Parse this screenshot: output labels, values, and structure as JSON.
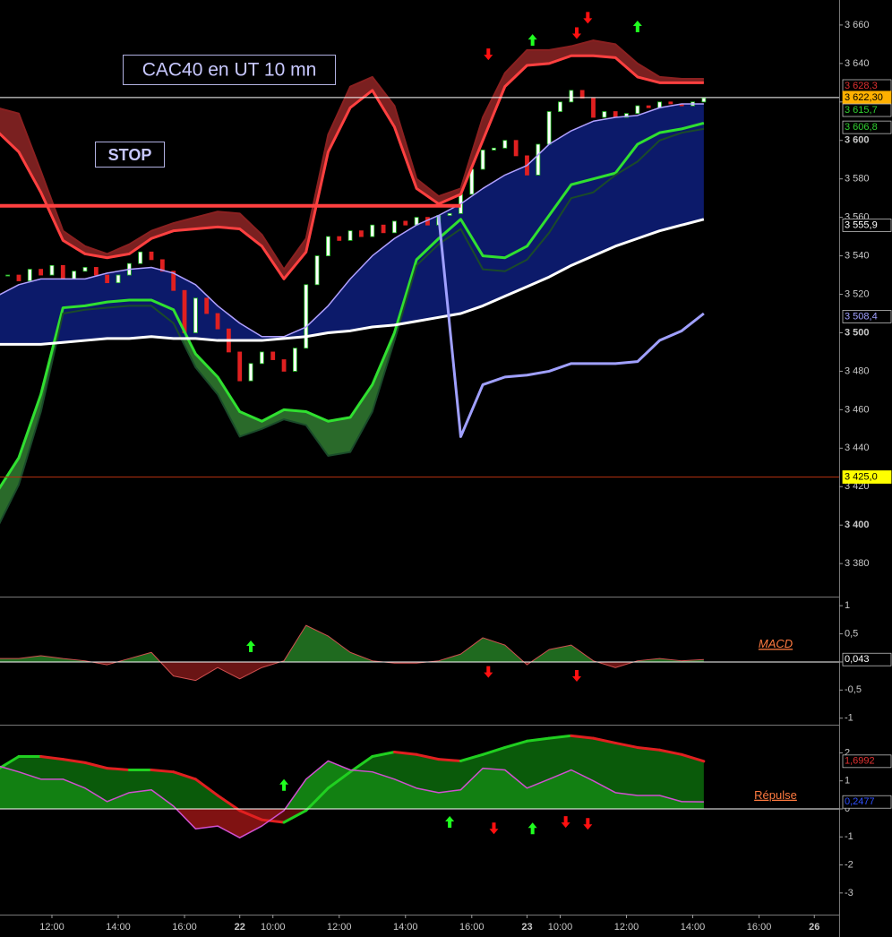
{
  "chart_data": [
    {
      "type": "candlestick",
      "annotations": [
        "CAC40 en UT 10 mn",
        "STOP"
      ],
      "xlim": [
        -9.4,
        142.5
      ],
      "ylim": [
        3363.3,
        3673
      ],
      "yticks": [
        {
          "value": 3380,
          "label": "3 380"
        },
        {
          "value": 3400,
          "label": "3 400"
        },
        {
          "value": 3420,
          "label": "3 420"
        },
        {
          "value": 3440,
          "label": "3 440"
        },
        {
          "value": 3460,
          "label": "3 460"
        },
        {
          "value": 3480,
          "label": "3 480"
        },
        {
          "value": 3500,
          "label": "3 500"
        },
        {
          "value": 3520,
          "label": "3 520"
        },
        {
          "value": 3540,
          "label": "3 540"
        },
        {
          "value": 3560,
          "label": "3 560"
        },
        {
          "value": 3580,
          "label": "3 580"
        },
        {
          "value": 3600,
          "label": "3 600"
        },
        {
          "value": 3620,
          "label": "3 620"
        },
        {
          "value": 3640,
          "label": "3 640"
        },
        {
          "value": 3660,
          "label": "3 660"
        }
      ],
      "candles": {
        "up_color": "#ffffff",
        "down_color": "#e02020",
        "edge_color": "#20c020",
        "x": [
          -8,
          -6,
          -4,
          -2,
          0,
          2,
          4,
          6,
          8,
          10,
          12,
          14,
          16,
          18,
          20,
          22,
          24,
          26,
          28,
          30,
          32,
          34,
          36,
          38,
          40,
          42,
          44,
          46,
          48,
          50,
          52,
          54,
          56,
          58,
          60,
          62,
          64,
          66,
          68,
          70,
          72,
          74,
          76,
          78,
          80,
          82,
          84,
          86,
          88,
          90,
          92,
          94,
          96,
          98,
          100,
          102,
          104,
          106,
          108,
          110,
          112,
          114,
          116,
          118
        ],
        "close": [
          3530,
          3527,
          3533,
          3530,
          3535,
          3528,
          3532,
          3534,
          3530,
          3526,
          3530,
          3536,
          3542,
          3538,
          3532,
          3522,
          3500,
          3518,
          3510,
          3502,
          3490,
          3475,
          3484,
          3490,
          3486,
          3480,
          3492,
          3525,
          3540,
          3550,
          3548,
          3553,
          3550,
          3556,
          3552,
          3558,
          3556,
          3560,
          3556,
          3561,
          3562,
          3572,
          3585,
          3595,
          3596,
          3600,
          3592,
          3582,
          3598,
          3615,
          3620,
          3626,
          3622,
          3612,
          3615,
          3612,
          3614,
          3618,
          3617,
          3620,
          3619,
          3618,
          3620,
          3622
        ]
      },
      "x": [
        -10,
        -6,
        -2,
        2,
        6,
        10,
        14,
        18,
        22,
        26,
        30,
        34,
        38,
        42,
        46,
        50,
        54,
        58,
        62,
        66,
        70,
        74,
        78,
        82,
        86,
        90,
        94,
        98,
        102,
        106,
        110,
        114,
        118
      ],
      "series": [
        {
          "color": "#8a2020",
          "width": 2,
          "values": [
            3617,
            3614,
            3584,
            3553,
            3545,
            3541,
            3546,
            3553,
            3557,
            3560,
            3563,
            3562,
            3551,
            3533,
            3549,
            3603,
            3628,
            3633,
            3618,
            3580,
            3571,
            3575,
            3612,
            3635,
            3647,
            3647,
            3649,
            3652,
            3650,
            3640,
            3633,
            3632,
            3632
          ]
        },
        {
          "color": "#ff4040",
          "width": 3,
          "values": [
            3605,
            3594,
            3573,
            3548,
            3541,
            3539,
            3541,
            3549,
            3553,
            3554,
            3555,
            3554,
            3545,
            3528,
            3542,
            3594,
            3617,
            3626,
            3607,
            3575,
            3567,
            3572,
            3600,
            3628,
            3639,
            3640,
            3644,
            3644,
            3643,
            3633,
            3630,
            3630,
            3630
          ]
        },
        {
          "color": "#30e030",
          "width": 3,
          "values": [
            3417,
            3435,
            3468,
            3513,
            3514,
            3516,
            3517,
            3517,
            3512,
            3489,
            3477,
            3459,
            3454,
            3460,
            3459,
            3454,
            3456,
            3473,
            3500,
            3538,
            3549,
            3559,
            3540,
            3539,
            3545,
            3561,
            3577,
            3580,
            3583,
            3598,
            3604,
            3606,
            3609
          ]
        },
        {
          "color": "#1a4a2a",
          "width": 2,
          "values": [
            3398,
            3421,
            3459,
            3510,
            3512,
            3513,
            3514,
            3514,
            3505,
            3482,
            3468,
            3446,
            3450,
            3455,
            3452,
            3436,
            3438,
            3459,
            3496,
            3535,
            3546,
            3554,
            3533,
            3532,
            3538,
            3552,
            3570,
            3573,
            3582,
            3589,
            3600,
            3604,
            3606
          ]
        },
        {
          "color": "#b0a0ff",
          "width": 1.5,
          "values": [
            3519,
            3525,
            3528,
            3528,
            3528,
            3531,
            3533,
            3534,
            3531,
            3525,
            3514,
            3505,
            3498,
            3498,
            3503,
            3514,
            3528,
            3540,
            3549,
            3556,
            3561,
            3567,
            3575,
            3582,
            3587,
            3598,
            3605,
            3610,
            3612,
            3613,
            3617,
            3619,
            3619
          ]
        },
        {
          "color": "#ffffff",
          "width": 3,
          "values": [
            3494,
            3494,
            3494,
            3495,
            3496,
            3497,
            3497,
            3498,
            3497,
            3497,
            3496,
            3496,
            3496,
            3497,
            3498,
            3500,
            3501,
            3503,
            3504,
            3506,
            3508,
            3510,
            3514,
            3519,
            3524,
            3529,
            3535,
            3540,
            3545,
            3549,
            3553,
            3556,
            3559
          ]
        },
        {
          "color": "#a0a0ff",
          "width": 3,
          "values": [
            null,
            null,
            null,
            null,
            null,
            null,
            null,
            null,
            null,
            null,
            null,
            null,
            null,
            null,
            null,
            null,
            null,
            null,
            null,
            null,
            3561,
            3446,
            3473,
            3477,
            3478,
            3480,
            3484,
            3484,
            3484,
            3485,
            3496,
            3501,
            3510
          ]
        }
      ],
      "fills": [
        {
          "between": [
            0,
            1
          ],
          "color": "#7a2020"
        },
        {
          "between": [
            2,
            3
          ],
          "color": "#2a6a2a"
        },
        {
          "between": [
            4,
            5
          ],
          "color": "#0c1a6a"
        }
      ],
      "hlines": [
        {
          "value": 3622.3,
          "color": "#ffffff",
          "width": 1
        },
        {
          "value": 3425,
          "color": "#b03010",
          "width": 1
        },
        {
          "value": 3566,
          "color": "#ff4040",
          "width": 4,
          "x_end": 74
        }
      ],
      "tags": [
        {
          "value": 3628.3,
          "label": "3 628,3",
          "color": "#e03030"
        },
        {
          "value": 3622.3,
          "label": "3 622,30",
          "color": "#ffb000",
          "filled": true
        },
        {
          "value": 3615.7,
          "label": "3 615,7",
          "color": "#30d030"
        },
        {
          "value": 3606.8,
          "label": "3 606,8",
          "color": "#30d030"
        },
        {
          "value": 3555.9,
          "label": "3 555,9",
          "color": "#ffffff"
        },
        {
          "value": 3508.4,
          "label": "3 508,4",
          "color": "#a0a0ff"
        },
        {
          "value": 3425,
          "label": "3 425,0",
          "color": "#ffff00",
          "filled": true
        }
      ],
      "signal_colors": {
        "up": "#20ff20",
        "down": "#ff1010"
      },
      "signals": [
        {
          "x": 79,
          "y": 3645,
          "direction": "down"
        },
        {
          "x": 87,
          "y": 3652,
          "direction": "up"
        },
        {
          "x": 95,
          "y": 3656,
          "direction": "down"
        },
        {
          "x": 97,
          "y": 3664,
          "direction": "down"
        },
        {
          "x": 106,
          "y": 3659,
          "direction": "up"
        }
      ]
    },
    {
      "type": "area",
      "label": "MACD",
      "xlim": [
        -9.4,
        142.5
      ],
      "ylim": [
        -1.1,
        1.13
      ],
      "yticks": [
        1,
        {
          "value": 0.5,
          "label": "0,5"
        },
        0,
        {
          "value": -0.5,
          "label": "-0,5"
        },
        -1
      ],
      "x": [
        -10,
        -6,
        -2,
        2,
        6,
        10,
        14,
        18,
        22,
        26,
        30,
        34,
        38,
        42,
        46,
        50,
        54,
        58,
        62,
        66,
        70,
        74,
        78,
        82,
        86,
        90,
        94,
        98,
        102,
        106,
        110,
        114,
        118
      ],
      "series": [
        {
          "color": "#d05050",
          "width": 1,
          "fill_pos": "#1f6a1f",
          "fill_neg": "#6a1515",
          "values": [
            0.06,
            0.06,
            0.11,
            0.06,
            0.02,
            -0.05,
            0.06,
            0.17,
            -0.25,
            -0.33,
            -0.1,
            -0.3,
            -0.1,
            0.02,
            0.65,
            0.46,
            0.17,
            0.02,
            -0.02,
            -0.02,
            0.02,
            0.14,
            0.43,
            0.3,
            -0.05,
            0.22,
            0.3,
            0.02,
            -0.1,
            0.02,
            0.06,
            0.02,
            0.043
          ]
        }
      ],
      "hlines": [
        {
          "value": 0,
          "color": "#ffffff",
          "width": 1
        }
      ],
      "tags": [
        {
          "value": 0.043,
          "label": "0,043",
          "color": "#ffffff"
        }
      ],
      "signal_colors": {
        "up": "#20ff20",
        "down": "#ff1010"
      },
      "signals": [
        {
          "x": 36,
          "y": 0.27,
          "direction": "up"
        },
        {
          "x": 79,
          "y": -0.17,
          "direction": "down"
        },
        {
          "x": 95,
          "y": -0.24,
          "direction": "down"
        }
      ]
    },
    {
      "type": "area",
      "label": "Répulse",
      "xlim": [
        -9.4,
        142.5
      ],
      "ylim": [
        -3.74,
        2.94
      ],
      "yticks": [
        2,
        1,
        0,
        -1,
        -2,
        -3
      ],
      "xticks": [
        {
          "value": 0,
          "label": "12:00"
        },
        {
          "value": 12,
          "label": "14:00"
        },
        {
          "value": 24,
          "label": "16:00"
        },
        {
          "value": 34,
          "label": "22"
        },
        {
          "value": 40,
          "label": "10:00"
        },
        {
          "value": 52,
          "label": "12:00"
        },
        {
          "value": 64,
          "label": "14:00"
        },
        {
          "value": 76,
          "label": "16:00"
        },
        {
          "value": 86,
          "label": "23"
        },
        {
          "value": 92,
          "label": "10:00"
        },
        {
          "value": 104,
          "label": "12:00"
        },
        {
          "value": 116,
          "label": "14:00"
        },
        {
          "value": 128,
          "label": "16:00"
        },
        {
          "value": 138,
          "label": "26"
        }
      ],
      "x": [
        -10,
        -6,
        -2,
        2,
        6,
        10,
        14,
        18,
        22,
        26,
        30,
        34,
        38,
        42,
        46,
        50,
        54,
        58,
        62,
        66,
        70,
        74,
        78,
        82,
        86,
        90,
        94,
        98,
        102,
        106,
        110,
        114,
        118
      ],
      "series": [
        {
          "color": "#e02020",
          "up_color": "#20d020",
          "width": 3,
          "fill_pos": "#0a5a0a",
          "fill_neg": "#5a0a0a",
          "values": [
            1.39,
            1.87,
            1.87,
            1.77,
            1.65,
            1.45,
            1.39,
            1.39,
            1.32,
            1.06,
            0.48,
            -0.06,
            -0.39,
            -0.48,
            -0.06,
            0.74,
            1.32,
            1.87,
            2.03,
            1.94,
            1.77,
            1.71,
            1.94,
            2.19,
            2.42,
            2.52,
            2.61,
            2.52,
            2.35,
            2.19,
            2.1,
            1.94,
            1.7
          ]
        },
        {
          "color": "#d050d0",
          "width": 1.5,
          "fill_pos": "#128012",
          "fill_neg": "#801212",
          "values": [
            1.55,
            1.32,
            1.06,
            1.06,
            0.74,
            0.26,
            0.58,
            0.68,
            0.1,
            -0.71,
            -0.61,
            -1.03,
            -0.61,
            -0.06,
            1.06,
            1.71,
            1.39,
            1.32,
            1.06,
            0.74,
            0.58,
            0.68,
            1.45,
            1.39,
            0.74,
            1.06,
            1.39,
            1.0,
            0.58,
            0.48,
            0.48,
            0.26,
            0.25
          ]
        }
      ],
      "hlines": [
        {
          "value": 0,
          "color": "#ffffff",
          "width": 1
        }
      ],
      "tags": [
        {
          "value": 1.6992,
          "label": "1,6992",
          "color": "#e03030"
        },
        {
          "value": 0.2477,
          "label": "0,2477",
          "color": "#3050ff"
        }
      ],
      "signal_colors": {
        "up": "#20ff20",
        "down": "#ff1010"
      },
      "signals": [
        {
          "x": 42,
          "y": 0.84,
          "direction": "up"
        },
        {
          "x": 72,
          "y": -0.48,
          "direction": "up"
        },
        {
          "x": 87,
          "y": -0.71,
          "direction": "up"
        },
        {
          "x": 80,
          "y": -0.68,
          "direction": "down"
        },
        {
          "x": 93,
          "y": -0.45,
          "direction": "down"
        },
        {
          "x": 97,
          "y": -0.52,
          "direction": "down"
        }
      ]
    }
  ]
}
